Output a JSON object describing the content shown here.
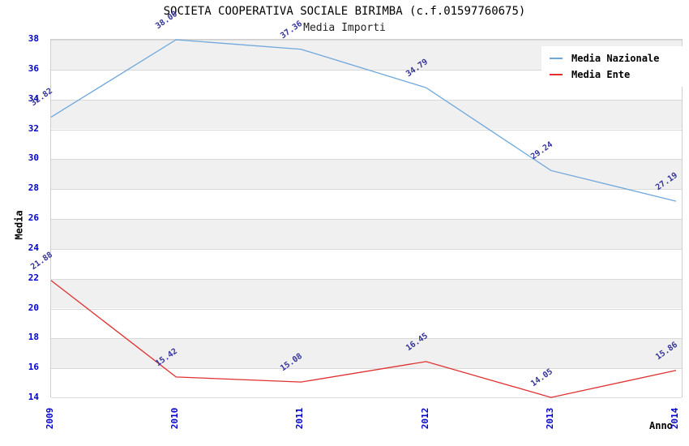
{
  "title": "SOCIETA COOPERATIVA SOCIALE BIRIMBA (c.f.01597760675)",
  "subtitle": "Media Importi",
  "chart_data": {
    "type": "line",
    "x": [
      2009,
      2010,
      2011,
      2012,
      2013,
      2014
    ],
    "series": [
      {
        "name": "Media Nazionale",
        "color": "#6fa8dc",
        "values": [
          32.82,
          38.0,
          37.36,
          34.79,
          29.24,
          27.19
        ]
      },
      {
        "name": "Media Ente",
        "color": "#e03030",
        "values": [
          21.88,
          15.42,
          15.08,
          16.45,
          14.05,
          15.86
        ]
      }
    ],
    "xlabel": "Anno",
    "ylabel": "Media",
    "ylim": [
      14,
      38
    ],
    "ytick_step": 2,
    "grid": true,
    "band_fill": "alternating",
    "legend_position": "top-right",
    "tick_color": "#0000cc",
    "point_label_color": "#333399"
  }
}
